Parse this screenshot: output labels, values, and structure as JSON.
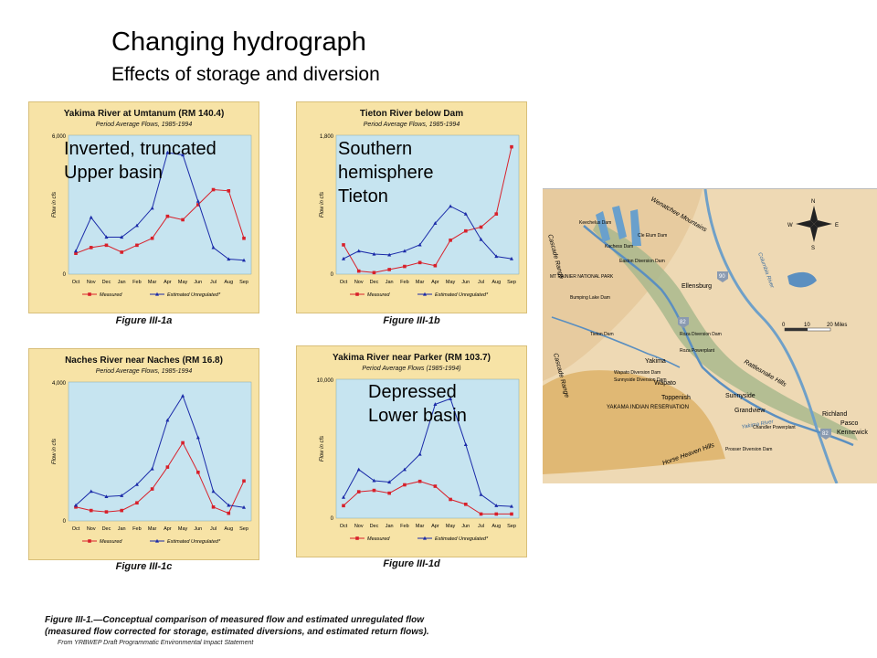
{
  "title": "Changing hydrograph",
  "subtitle": "Effects of storage and diversion",
  "months": [
    "Oct",
    "Nov",
    "Dec",
    "Jan",
    "Feb",
    "Mar",
    "Apr",
    "May",
    "Jun",
    "Jul",
    "Aug",
    "Sep"
  ],
  "legend": {
    "measured": "Measured",
    "unregulated": "Estimated Unregulated*"
  },
  "yaxis_label": "Flow in cfs",
  "colors": {
    "measured": "#d8202a",
    "unregulated": "#1a2aa8",
    "plot_bg": "#c6e4f0",
    "panel_bg": "#f7e3a6"
  },
  "chart_data": [
    {
      "type": "line",
      "title": "Yakima River at Umtanum (RM 140.4)",
      "subtitle": "Period Average Flows, 1985-1994",
      "figure": "Figure III-1a",
      "overlay": [
        "Inverted, truncated",
        "Upper basin"
      ],
      "ylim": [
        0,
        6000
      ],
      "ytick_labels": [
        "6,000",
        "0"
      ],
      "x": [
        "Oct",
        "Nov",
        "Dec",
        "Jan",
        "Feb",
        "Mar",
        "Apr",
        "May",
        "Jun",
        "Jul",
        "Aug",
        "Sep"
      ],
      "series": [
        {
          "name": "Measured",
          "values": [
            900,
            1150,
            1250,
            950,
            1250,
            1550,
            2500,
            2350,
            3000,
            3650,
            3600,
            1550
          ]
        },
        {
          "name": "Estimated Unregulated*",
          "values": [
            1000,
            2450,
            1600,
            1600,
            2100,
            2850,
            5250,
            5150,
            3150,
            1150,
            650,
            600
          ]
        }
      ]
    },
    {
      "type": "line",
      "title": "Tieton River below Dam",
      "subtitle": "Period Average Flows, 1985-1994",
      "figure": "Figure III-1b",
      "overlay": [
        "Southern",
        "hemisphere",
        "Tieton"
      ],
      "ylim": [
        0,
        1800
      ],
      "ytick_labels": [
        "1,800",
        "0"
      ],
      "x": [
        "Oct",
        "Nov",
        "Dec",
        "Jan",
        "Feb",
        "Mar",
        "Apr",
        "May",
        "Jun",
        "Jul",
        "Aug",
        "Sep"
      ],
      "series": [
        {
          "name": "Measured",
          "values": [
            380,
            40,
            20,
            60,
            100,
            150,
            110,
            440,
            560,
            610,
            780,
            1650
          ]
        },
        {
          "name": "Estimated Unregulated*",
          "values": [
            200,
            300,
            260,
            250,
            300,
            380,
            660,
            880,
            780,
            450,
            230,
            200
          ]
        }
      ]
    },
    {
      "type": "line",
      "title": "Naches River near Naches (RM 16.8)",
      "subtitle": "Period Average Flows, 1985-1994",
      "figure": "Figure III-1c",
      "overlay": [],
      "ylim": [
        0,
        4000
      ],
      "ytick_labels": [
        "4,000",
        "0"
      ],
      "x": [
        "Oct",
        "Nov",
        "Dec",
        "Jan",
        "Feb",
        "Mar",
        "Apr",
        "May",
        "Jun",
        "Jul",
        "Aug",
        "Sep"
      ],
      "series": [
        {
          "name": "Measured",
          "values": [
            400,
            300,
            260,
            300,
            520,
            920,
            1550,
            2250,
            1400,
            400,
            220,
            1150
          ]
        },
        {
          "name": "Estimated Unregulated*",
          "values": [
            450,
            850,
            700,
            730,
            1050,
            1500,
            2900,
            3600,
            2400,
            850,
            450,
            390
          ]
        }
      ]
    },
    {
      "type": "line",
      "title": "Yakima River near Parker (RM 103.7)",
      "subtitle": "Period Average Flows (1985-1994)",
      "figure": "Figure III-1d",
      "overlay": [
        "Depressed",
        "Lower basin"
      ],
      "ylim": [
        0,
        10000
      ],
      "ytick_labels": [
        "10,000",
        "0"
      ],
      "x": [
        "Oct",
        "Nov",
        "Dec",
        "Jan",
        "Feb",
        "Mar",
        "Apr",
        "May",
        "Jun",
        "Jul",
        "Aug",
        "Sep"
      ],
      "series": [
        {
          "name": "Measured",
          "values": [
            900,
            1900,
            2000,
            1800,
            2400,
            2650,
            2300,
            1350,
            1000,
            300,
            300,
            300
          ]
        },
        {
          "name": "Estimated Unregulated*",
          "values": [
            1500,
            3500,
            2700,
            2600,
            3500,
            4600,
            8200,
            8600,
            5300,
            1700,
            900,
            850
          ]
        }
      ]
    }
  ],
  "caption": {
    "line1": "Figure III-1.—Conceptual comparison of measured flow and estimated unregulated flow",
    "line2": "(measured flow corrected for storage, estimated diversions, and estimated return flows).",
    "source": "From YRBWEP Draft Programmatic Environmental Impact Statement"
  },
  "map": {
    "compass": {
      "n": "N",
      "e": "E",
      "s": "S",
      "w": "W"
    },
    "scale": {
      "zero": "0",
      "ten": "10",
      "twenty": "20 Miles"
    },
    "labels": {
      "wenatchee": "Wenatchee Mountains",
      "cascade_north": "Cascade Range",
      "cascade_south": "Cascade Range",
      "rainier": "MT RAINIER NATIONAL PARK",
      "ellensburg": "Ellensburg",
      "roza": "Roza Diversion Dam",
      "roza_power": "Roza Powerplant",
      "yakima": "Yakima",
      "wapato": "Wapato",
      "toppenish": "Toppenish",
      "sunnyside": "Sunnyside",
      "grandview": "Grandview",
      "richland": "Richland",
      "pasco": "Pasco",
      "kennewick": "Kennewick",
      "rattlesnake": "Rattlesnake Hills",
      "horse_heaven": "Horse Heaven Hills",
      "reservation": "YAKAMA INDIAN RESERVATION",
      "yakima_river": "Yakima River",
      "columbia_river": "Columbia River",
      "chandler": "Chandler Powerplant",
      "prosser": "Prosser Diversion Dam",
      "wapato_dam": "Wapato Diversion Dam",
      "sunnyside_dam": "Sunnyside Diversion Dam",
      "cle_elum": "Cle Elum Dam",
      "bumping": "Bumping Lake Dam",
      "tieton_dam": "Tieton Dam",
      "keechelus": "Keechelus Dam",
      "kachess": "Kachess Dam",
      "easton": "Easton Diversion Dam",
      "hwy90": "90",
      "hwy82a": "82",
      "hwy82b": "82"
    }
  }
}
